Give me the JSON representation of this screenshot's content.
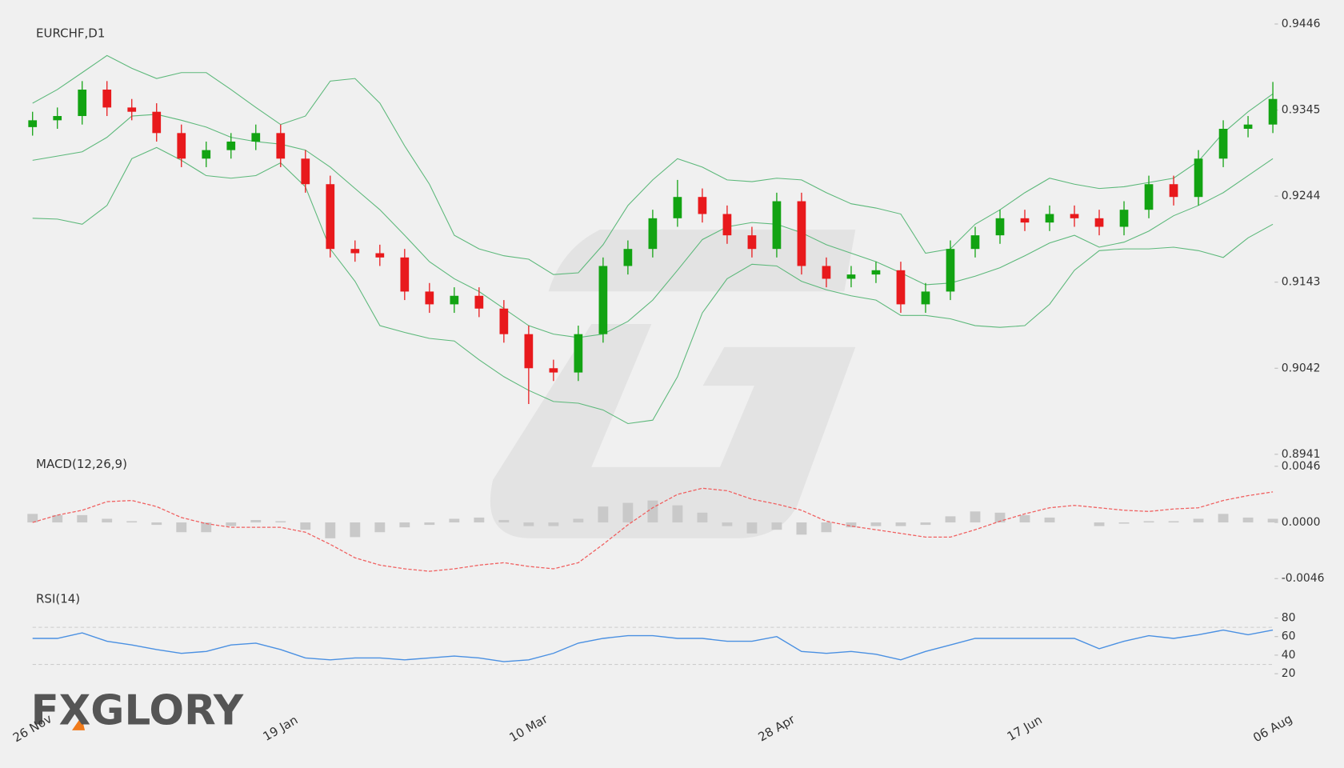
{
  "chart_data": [
    {
      "type": "candlestick",
      "title": "EURCHF,D1",
      "categories": [
        "26 Nov",
        null,
        null,
        null,
        null,
        null,
        null,
        null,
        null,
        null,
        "19 Jan",
        null,
        null,
        null,
        null,
        null,
        null,
        null,
        null,
        null,
        "10 Mar",
        null,
        null,
        null,
        null,
        null,
        null,
        null,
        null,
        null,
        "28 Apr",
        null,
        null,
        null,
        null,
        null,
        null,
        null,
        null,
        null,
        "17 Jun",
        null,
        null,
        null,
        null,
        null,
        null,
        null,
        null,
        null,
        "06 Aug"
      ],
      "open": [
        0.9325,
        0.9333,
        0.9338,
        0.9369,
        0.9348,
        0.9343,
        0.9318,
        0.9288,
        0.9298,
        0.9308,
        0.9318,
        0.9288,
        0.9258,
        0.9182,
        0.9177,
        0.9172,
        0.9132,
        0.9117,
        0.9127,
        0.9112,
        0.9082,
        0.9042,
        0.9037,
        0.9082,
        0.9162,
        0.9182,
        0.9218,
        0.9243,
        0.9223,
        0.9198,
        0.9182,
        0.9238,
        0.9162,
        0.9147,
        0.9152,
        0.9157,
        0.9117,
        0.9132,
        0.9182,
        0.9198,
        0.9218,
        0.9213,
        0.9223,
        0.9218,
        0.9208,
        0.9228,
        0.9258,
        0.9243,
        0.9288,
        0.9323,
        0.9328
      ],
      "high": [
        0.9343,
        0.9348,
        0.9379,
        0.9379,
        0.9358,
        0.9353,
        0.9328,
        0.9308,
        0.9318,
        0.9328,
        0.9328,
        0.9298,
        0.9268,
        0.9192,
        0.9187,
        0.9182,
        0.9142,
        0.9137,
        0.9137,
        0.9122,
        0.9092,
        0.9052,
        0.9092,
        0.9172,
        0.9192,
        0.9228,
        0.9263,
        0.9253,
        0.9233,
        0.9208,
        0.9248,
        0.9248,
        0.9172,
        0.9162,
        0.9167,
        0.9167,
        0.9142,
        0.9192,
        0.9208,
        0.9228,
        0.9228,
        0.9233,
        0.9233,
        0.9228,
        0.9238,
        0.9268,
        0.9268,
        0.9298,
        0.9333,
        0.9338,
        0.9378
      ],
      "low": [
        0.9315,
        0.9323,
        0.9328,
        0.9338,
        0.9333,
        0.9308,
        0.9278,
        0.9278,
        0.9288,
        0.9298,
        0.9278,
        0.9248,
        0.9172,
        0.9167,
        0.9162,
        0.9122,
        0.9107,
        0.9107,
        0.9102,
        0.9072,
        0.9,
        0.9027,
        0.9027,
        0.9072,
        0.9152,
        0.9172,
        0.9208,
        0.9213,
        0.9188,
        0.9172,
        0.9172,
        0.9152,
        0.9137,
        0.9137,
        0.9142,
        0.9107,
        0.9107,
        0.9122,
        0.9172,
        0.9188,
        0.9203,
        0.9203,
        0.9208,
        0.9198,
        0.9198,
        0.9218,
        0.9233,
        0.9233,
        0.9278,
        0.9313,
        0.9318
      ],
      "close": [
        0.9333,
        0.9338,
        0.9369,
        0.9348,
        0.9343,
        0.9318,
        0.9288,
        0.9298,
        0.9308,
        0.9318,
        0.9288,
        0.9258,
        0.9182,
        0.9177,
        0.9172,
        0.9132,
        0.9117,
        0.9127,
        0.9112,
        0.9082,
        0.9042,
        0.9037,
        0.9082,
        0.9162,
        0.9182,
        0.9218,
        0.9243,
        0.9223,
        0.9198,
        0.9182,
        0.9238,
        0.9162,
        0.9147,
        0.9152,
        0.9157,
        0.9117,
        0.9132,
        0.9182,
        0.9198,
        0.9218,
        0.9213,
        0.9223,
        0.9218,
        0.9208,
        0.9228,
        0.9258,
        0.9243,
        0.9288,
        0.9323,
        0.9328,
        0.9358
      ],
      "bb_upper": [
        0.9353,
        0.9369,
        0.9389,
        0.9409,
        0.9394,
        0.9382,
        0.9389,
        0.9389,
        0.9369,
        0.9348,
        0.9328,
        0.9338,
        0.9379,
        0.9382,
        0.9353,
        0.9303,
        0.9258,
        0.9198,
        0.9182,
        0.9174,
        0.917,
        0.9152,
        0.9154,
        0.9187,
        0.9233,
        0.9263,
        0.9288,
        0.9278,
        0.9263,
        0.9261,
        0.9265,
        0.9263,
        0.9248,
        0.9235,
        0.923,
        0.9223,
        0.9177,
        0.9182,
        0.9211,
        0.9228,
        0.9248,
        0.9265,
        0.9258,
        0.9253,
        0.9255,
        0.926,
        0.9265,
        0.9285,
        0.9318,
        0.9343,
        0.9364
      ],
      "bb_middle": [
        0.9286,
        0.9291,
        0.9296,
        0.9313,
        0.9338,
        0.934,
        0.9333,
        0.9325,
        0.9313,
        0.9308,
        0.9305,
        0.9298,
        0.9278,
        0.9253,
        0.9228,
        0.9198,
        0.9167,
        0.9147,
        0.9132,
        0.9112,
        0.9092,
        0.9082,
        0.9078,
        0.9082,
        0.9097,
        0.9122,
        0.9157,
        0.9193,
        0.9208,
        0.9213,
        0.9211,
        0.9201,
        0.9187,
        0.9177,
        0.9167,
        0.9154,
        0.914,
        0.9142,
        0.915,
        0.916,
        0.9174,
        0.9189,
        0.9198,
        0.9184,
        0.919,
        0.9203,
        0.9221,
        0.9233,
        0.9248,
        0.9268,
        0.9288
      ],
      "bb_lower": [
        0.9218,
        0.9217,
        0.9211,
        0.9233,
        0.9288,
        0.9301,
        0.9286,
        0.9268,
        0.9265,
        0.9268,
        0.9283,
        0.9255,
        0.9182,
        0.9144,
        0.9092,
        0.9084,
        0.9077,
        0.9074,
        0.9052,
        0.9032,
        0.9016,
        0.9003,
        0.9001,
        0.8993,
        0.8977,
        0.8981,
        0.9032,
        0.9107,
        0.9147,
        0.9164,
        0.9162,
        0.9144,
        0.9134,
        0.9127,
        0.9122,
        0.9104,
        0.9104,
        0.91,
        0.9092,
        0.909,
        0.9092,
        0.9117,
        0.9157,
        0.918,
        0.9182,
        0.9182,
        0.9184,
        0.918,
        0.9172,
        0.9195,
        0.9211
      ],
      "up_color": "#12a312",
      "down_color": "#e8191c",
      "band_color": "#5cb87a",
      "ylim": [
        0.8941,
        0.9446
      ],
      "yticks": [
        0.9446,
        0.9345,
        0.9244,
        0.9143,
        0.9042,
        0.8941
      ],
      "logo": "FXGLORY"
    },
    {
      "type": "macd",
      "title": "MACD(12,26,9)",
      "histogram": [
        0.0007,
        0.0006,
        0.0006,
        0.0003,
        0.0001,
        -0.0002,
        -0.0008,
        -0.0008,
        -0.0003,
        0.0002,
        0.0001,
        -0.0006,
        -0.0013,
        -0.0012,
        -0.0008,
        -0.0004,
        -0.0002,
        0.0003,
        0.0004,
        0.0002,
        -0.0003,
        -0.0003,
        0.0003,
        0.0013,
        0.0016,
        0.0018,
        0.0014,
        0.0008,
        -0.0003,
        -0.0009,
        -0.0006,
        -0.001,
        -0.0008,
        -0.0004,
        -0.0003,
        -0.0003,
        -0.0002,
        0.0005,
        0.0009,
        0.0008,
        0.0006,
        0.0004,
        0.0,
        -0.0003,
        -0.0001,
        0.0001,
        0.0001,
        0.0003,
        0.0007,
        0.0004,
        0.0003
      ],
      "signal": [
        0,
        0.0006,
        0.001,
        0.0017,
        0.0018,
        0.0013,
        0.0004,
        -0.0001,
        -0.0004,
        -0.0004,
        -0.0004,
        -0.0008,
        -0.0018,
        -0.0029,
        -0.0035,
        -0.0038,
        -0.004,
        -0.0038,
        -0.0035,
        -0.0033,
        -0.0036,
        -0.0038,
        -0.0033,
        -0.0018,
        -0.0002,
        0.0012,
        0.0023,
        0.0028,
        0.0026,
        0.0019,
        0.0015,
        0.001,
        0.0001,
        -0.0003,
        -0.0006,
        -0.0009,
        -0.0012,
        -0.0012,
        -0.0006,
        0.0001,
        0.0007,
        0.0012,
        0.0014,
        0.0012,
        0.001,
        0.0009,
        0.0011,
        0.0012,
        0.0018,
        0.0022,
        0.0025
      ],
      "histogram_color": "#c9c9c9",
      "signal_color": "#f06060",
      "ylim": [
        -0.0046,
        0.0046
      ],
      "yticks": [
        0.0046,
        {
          "value": 0,
          "label": "0.0000"
        },
        -0.0046
      ]
    },
    {
      "type": "line",
      "title": "RSI(14)",
      "values": [
        58,
        58,
        64,
        55,
        51,
        46,
        42,
        44,
        51,
        53,
        46,
        37,
        35,
        37,
        37,
        35,
        37,
        39,
        37,
        33,
        35,
        42,
        53,
        58,
        61,
        61,
        58,
        58,
        55,
        55,
        60,
        44,
        42,
        44,
        41,
        35,
        44,
        51,
        58,
        58,
        58,
        58,
        58,
        47,
        55,
        61,
        58,
        62,
        67,
        62,
        67
      ],
      "color": "#4a90e2",
      "levels": [
        30,
        70
      ],
      "ylim": [
        20,
        80
      ],
      "yticks": [
        80,
        60,
        40,
        20
      ]
    }
  ]
}
